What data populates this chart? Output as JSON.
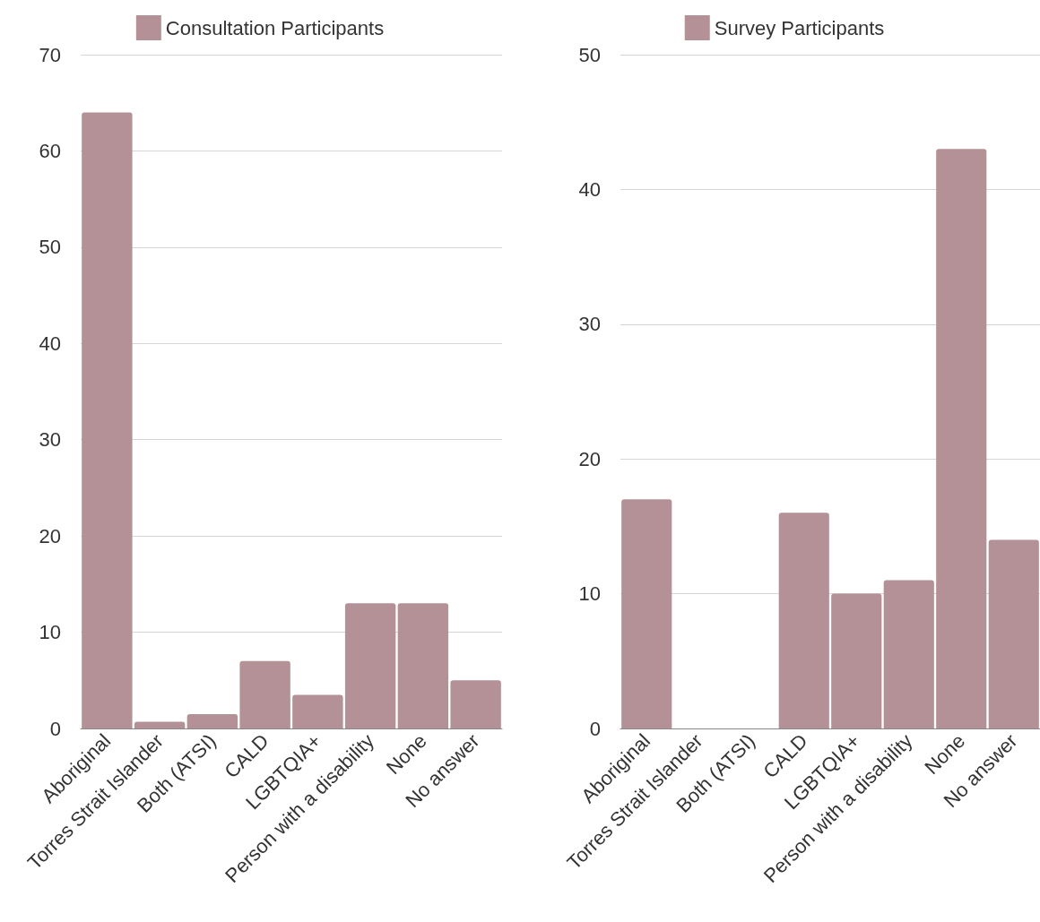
{
  "chart_data": [
    {
      "type": "bar",
      "categories": [
        "Aboriginal",
        "Torres Strait Islander",
        "Both (ATSI)",
        "CALD",
        "LGBTQIA+",
        "Person with a disability",
        "None",
        "No answer"
      ],
      "series": [
        {
          "name": "Consultation Participants",
          "color": "#b39196",
          "values": [
            64,
            0.7,
            1.5,
            7,
            3.5,
            13,
            13,
            5
          ]
        }
      ],
      "ylim": [
        0,
        70
      ],
      "yticks": [
        0,
        10,
        20,
        30,
        40,
        50,
        60,
        70
      ],
      "grid": "y",
      "legend": "top"
    },
    {
      "type": "bar",
      "categories": [
        "Aboriginal",
        "Torres Strait Islander",
        "Both (ATSI)",
        "CALD",
        "LGBTQIA+",
        "Person with a disability",
        "None",
        "No answer"
      ],
      "series": [
        {
          "name": "Survey Participants",
          "color": "#b39196",
          "values": [
            17,
            0,
            0,
            16,
            10,
            11,
            43,
            14
          ]
        }
      ],
      "ylim": [
        0,
        50
      ],
      "yticks": [
        0,
        10,
        20,
        30,
        40,
        50
      ],
      "grid": "y",
      "legend": "top"
    }
  ]
}
